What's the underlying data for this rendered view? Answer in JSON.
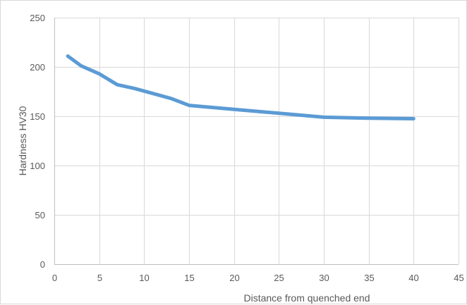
{
  "chart_data": {
    "type": "line",
    "title": "",
    "xlabel": "Distance from quenched end",
    "ylabel": "Hardness HV30",
    "xlim": [
      0,
      45
    ],
    "ylim": [
      0,
      250
    ],
    "x_ticks": [
      0,
      5,
      10,
      15,
      20,
      25,
      30,
      35,
      40,
      45
    ],
    "y_ticks": [
      0,
      50,
      100,
      150,
      200,
      250
    ],
    "grid": true,
    "legend": "none",
    "series": [
      {
        "color": "#5b9bd5",
        "x": [
          1.5,
          3,
          5,
          7,
          9,
          11,
          13,
          15,
          20,
          25,
          30,
          35,
          40
        ],
        "y": [
          211,
          201,
          193,
          182,
          178,
          173,
          168,
          161,
          157,
          153,
          149,
          148,
          147.5
        ]
      }
    ]
  }
}
